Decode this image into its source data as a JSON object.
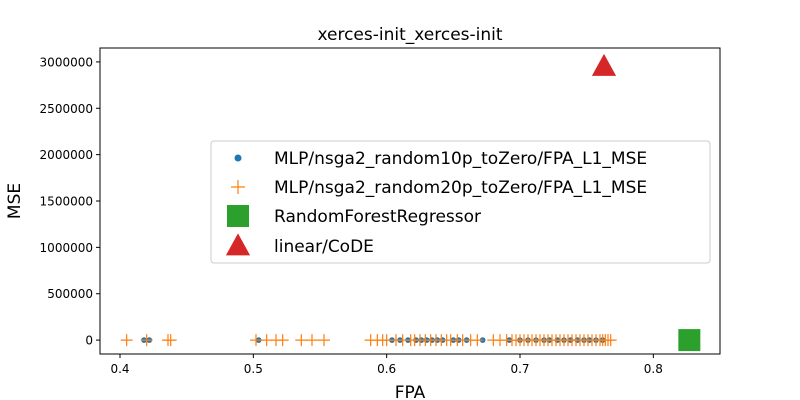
{
  "chart_data": {
    "type": "scatter",
    "title": "xerces-init_xerces-init",
    "xlabel": "FPA",
    "ylabel": "MSE",
    "xlim": [
      0.385,
      0.85
    ],
    "ylim": [
      -150000,
      3150000
    ],
    "x_ticks": [
      0.4,
      0.5,
      0.6,
      0.7,
      0.8
    ],
    "x_tick_labels": [
      "0.4",
      "0.5",
      "0.6",
      "0.7",
      "0.8"
    ],
    "y_ticks": [
      0,
      500000,
      1000000,
      1500000,
      2000000,
      2500000,
      3000000
    ],
    "y_tick_labels": [
      "0",
      "500000",
      "1000000",
      "1500000",
      "2000000",
      "2500000",
      "3000000"
    ],
    "grid": false,
    "legend_position": "center-right",
    "series": [
      {
        "name": "MLP/nsga2_random10p_toZero/FPA_L1_MSE",
        "marker": "circle",
        "color": "#1f77b4",
        "points": [
          [
            0.418,
            0
          ],
          [
            0.422,
            0
          ],
          [
            0.504,
            0
          ],
          [
            0.604,
            0
          ],
          [
            0.61,
            0
          ],
          [
            0.616,
            0
          ],
          [
            0.622,
            0
          ],
          [
            0.626,
            0
          ],
          [
            0.63,
            0
          ],
          [
            0.634,
            0
          ],
          [
            0.638,
            0
          ],
          [
            0.642,
            0
          ],
          [
            0.65,
            0
          ],
          [
            0.654,
            0
          ],
          [
            0.66,
            0
          ],
          [
            0.672,
            0
          ],
          [
            0.692,
            0
          ],
          [
            0.7,
            0
          ],
          [
            0.706,
            0
          ],
          [
            0.712,
            0
          ],
          [
            0.718,
            0
          ],
          [
            0.722,
            0
          ],
          [
            0.728,
            0
          ],
          [
            0.733,
            0
          ],
          [
            0.738,
            0
          ],
          [
            0.743,
            0
          ],
          [
            0.748,
            0
          ],
          [
            0.752,
            0
          ],
          [
            0.757,
            0
          ],
          [
            0.762,
            0
          ]
        ]
      },
      {
        "name": "MLP/nsga2_random20p_toZero/FPA_L1_MSE",
        "marker": "plus",
        "color": "#ff7f0e",
        "points": [
          [
            0.405,
            0
          ],
          [
            0.42,
            0
          ],
          [
            0.436,
            0
          ],
          [
            0.438,
            0
          ],
          [
            0.502,
            0
          ],
          [
            0.51,
            0
          ],
          [
            0.517,
            0
          ],
          [
            0.522,
            0
          ],
          [
            0.536,
            0
          ],
          [
            0.544,
            0
          ],
          [
            0.553,
            0
          ],
          [
            0.588,
            0
          ],
          [
            0.593,
            0
          ],
          [
            0.597,
            0
          ],
          [
            0.6,
            0
          ],
          [
            0.607,
            0
          ],
          [
            0.612,
            0
          ],
          [
            0.618,
            0
          ],
          [
            0.621,
            0
          ],
          [
            0.625,
            0
          ],
          [
            0.629,
            0
          ],
          [
            0.633,
            0
          ],
          [
            0.637,
            0
          ],
          [
            0.641,
            0
          ],
          [
            0.645,
            0
          ],
          [
            0.648,
            0
          ],
          [
            0.653,
            0
          ],
          [
            0.657,
            0
          ],
          [
            0.663,
            0
          ],
          [
            0.668,
            0
          ],
          [
            0.68,
            0
          ],
          [
            0.685,
            0
          ],
          [
            0.69,
            0
          ],
          [
            0.694,
            0
          ],
          [
            0.697,
            0
          ],
          [
            0.7,
            0
          ],
          [
            0.703,
            0
          ],
          [
            0.706,
            0
          ],
          [
            0.709,
            0
          ],
          [
            0.712,
            0
          ],
          [
            0.715,
            0
          ],
          [
            0.718,
            0
          ],
          [
            0.721,
            0
          ],
          [
            0.724,
            0
          ],
          [
            0.727,
            0
          ],
          [
            0.73,
            0
          ],
          [
            0.733,
            0
          ],
          [
            0.736,
            0
          ],
          [
            0.739,
            0
          ],
          [
            0.742,
            0
          ],
          [
            0.745,
            0
          ],
          [
            0.748,
            0
          ],
          [
            0.751,
            0
          ],
          [
            0.754,
            0
          ],
          [
            0.757,
            0
          ],
          [
            0.76,
            0
          ],
          [
            0.762,
            0
          ],
          [
            0.764,
            0
          ],
          [
            0.766,
            0
          ],
          [
            0.768,
            0
          ]
        ]
      },
      {
        "name": "RandomForestRegressor",
        "marker": "square",
        "color": "#2ca02c",
        "points": [
          [
            0.827,
            0
          ]
        ]
      },
      {
        "name": "linear/CoDE",
        "marker": "triangle",
        "color": "#d62728",
        "points": [
          [
            0.763,
            2950000
          ]
        ]
      }
    ]
  }
}
